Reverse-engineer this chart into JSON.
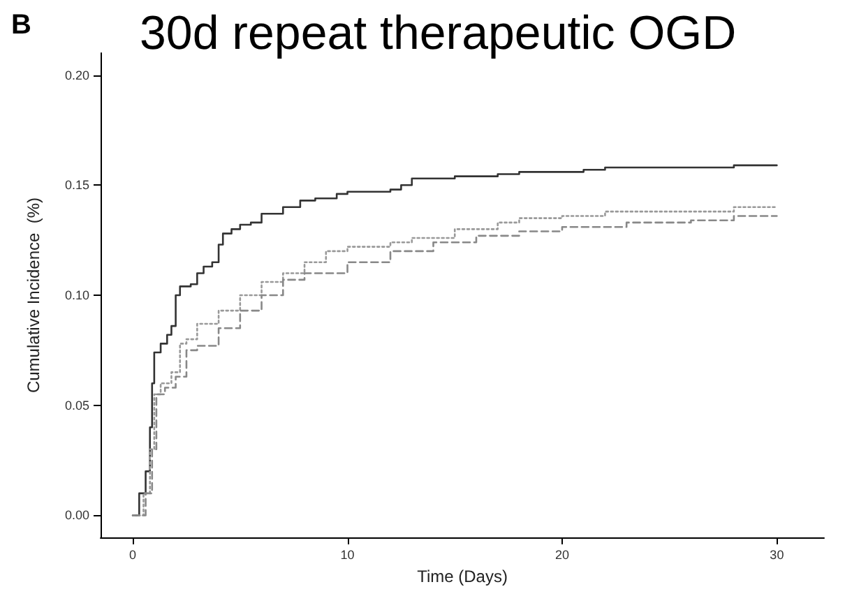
{
  "chart_data": {
    "type": "step",
    "title": "30d repeat therapeutic OGD",
    "xlabel": "Time (Days)",
    "ylabel": "Cumulative Incidence  (%)",
    "annotations": [
      "B"
    ],
    "series": [
      {
        "color": "#333333",
        "line_style": "solid",
        "x": [
          0,
          0.3,
          0.6,
          0.8,
          0.9,
          1.0,
          1.3,
          1.6,
          1.8,
          2.0,
          2.2,
          2.7,
          3.0,
          3.3,
          3.7,
          4.0,
          4.2,
          4.6,
          5.0,
          5.5,
          6.0,
          7.0,
          7.8,
          8.5,
          9.5,
          10,
          12,
          12.5,
          13,
          15,
          17,
          18,
          21,
          22,
          28,
          30
        ],
        "values": [
          0,
          0.01,
          0.02,
          0.04,
          0.06,
          0.074,
          0.078,
          0.082,
          0.086,
          0.1,
          0.104,
          0.105,
          0.11,
          0.113,
          0.115,
          0.123,
          0.128,
          0.13,
          0.132,
          0.133,
          0.137,
          0.14,
          0.143,
          0.144,
          0.146,
          0.147,
          0.148,
          0.15,
          0.153,
          0.154,
          0.155,
          0.156,
          0.157,
          0.158,
          0.159,
          0.159
        ]
      },
      {
        "color": "#999999",
        "line_style": "dotted",
        "x": [
          0,
          0.5,
          0.8,
          1.0,
          1.3,
          1.8,
          2.2,
          2.5,
          3.0,
          4,
          5,
          6,
          7,
          8,
          9,
          10,
          12,
          13,
          15,
          17,
          18,
          20,
          22,
          25,
          28,
          30
        ],
        "values": [
          0,
          0.01,
          0.03,
          0.055,
          0.06,
          0.065,
          0.078,
          0.08,
          0.087,
          0.093,
          0.1,
          0.106,
          0.11,
          0.115,
          0.12,
          0.122,
          0.124,
          0.126,
          0.13,
          0.133,
          0.135,
          0.136,
          0.138,
          0.138,
          0.14,
          0.14
        ]
      },
      {
        "color": "#888888",
        "line_style": "dashed",
        "x": [
          0,
          0.6,
          0.9,
          1.1,
          1.5,
          2.0,
          2.5,
          3,
          4,
          5,
          6,
          7,
          8,
          10,
          12,
          14,
          16,
          18,
          20,
          23,
          26,
          28,
          30
        ],
        "values": [
          0,
          0.01,
          0.03,
          0.055,
          0.058,
          0.063,
          0.075,
          0.077,
          0.085,
          0.093,
          0.1,
          0.107,
          0.11,
          0.115,
          0.12,
          0.124,
          0.127,
          0.129,
          0.131,
          0.133,
          0.134,
          0.136,
          0.136
        ]
      }
    ],
    "xlim": [
      -1.5,
      32.2
    ],
    "xticks": [
      0,
      10,
      20,
      30
    ],
    "ylim": [
      -0.01,
      0.21
    ],
    "yticks": [
      {
        "value": 0,
        "label": "0.00"
      },
      {
        "value": 0.05,
        "label": "0.05"
      },
      {
        "value": 0.1,
        "label": "0.10"
      },
      {
        "value": 0.15,
        "label": "0.15"
      },
      {
        "value": 0.2,
        "label": "0.20"
      }
    ],
    "marker": "none",
    "grid": false
  }
}
